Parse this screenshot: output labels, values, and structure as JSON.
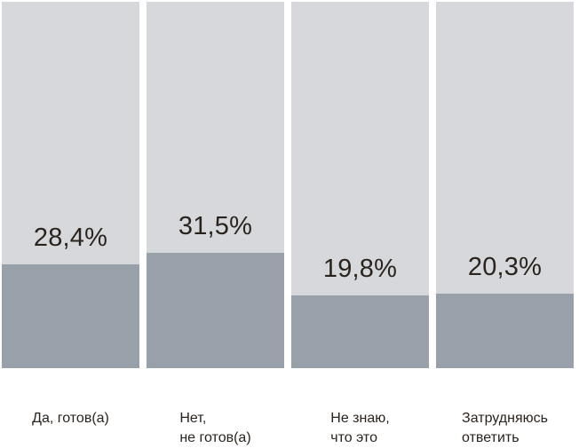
{
  "chart_data": {
    "type": "bar",
    "title": "",
    "xlabel": "",
    "ylabel": "",
    "ylim": [
      0,
      100
    ],
    "unit": "%",
    "grid": false,
    "legend_position": "none",
    "categories": [
      "Да, готов(а)",
      "Нет,\nне готов(а)",
      "Не знаю,\nчто это",
      "Затрудняюсь\nответить"
    ],
    "values": [
      28.4,
      31.5,
      19.8,
      20.3
    ],
    "value_labels": [
      "28,4%",
      "31,5%",
      "19,8%",
      "20,3%"
    ],
    "colors": {
      "bar_track": "#d6d8db",
      "bar_fill": "#98a1aa",
      "text": "#2b241e",
      "background": "#ffffff"
    }
  }
}
